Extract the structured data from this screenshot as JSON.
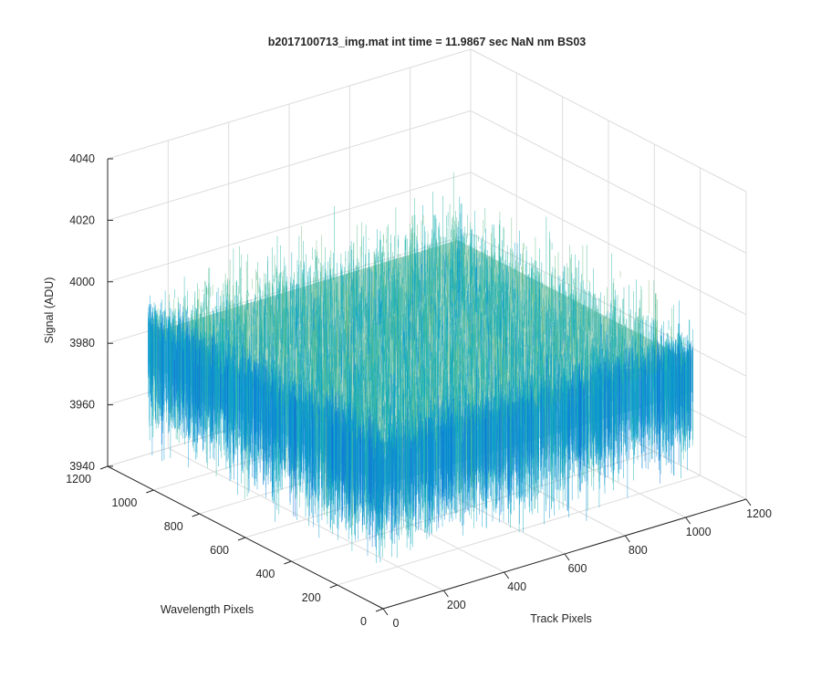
{
  "chart_data": {
    "type": "surface",
    "title": "b2017100713_img.mat int time = 11.9867 sec  NaN nm BS03",
    "xlabel": "Track Pixels",
    "ylabel": "Wavelength Pixels",
    "zlabel": "Signal (ADU)",
    "xlim": [
      0,
      1200
    ],
    "ylim": [
      0,
      1200
    ],
    "zlim": [
      3940,
      4040
    ],
    "xticks": [
      "0",
      "200",
      "400",
      "600",
      "800",
      "1000",
      "1200"
    ],
    "yticks": [
      "0",
      "200",
      "400",
      "600",
      "800",
      "1000",
      "1200"
    ],
    "zticks": [
      "3940",
      "3960",
      "3980",
      "4000",
      "4020",
      "4040"
    ],
    "grid": true,
    "colormap": "parula",
    "surface": {
      "x_range": [
        0,
        1024
      ],
      "y_range": [
        0,
        1024
      ],
      "mean_signal": 3990,
      "typical_range": [
        3950,
        4020
      ]
    }
  }
}
